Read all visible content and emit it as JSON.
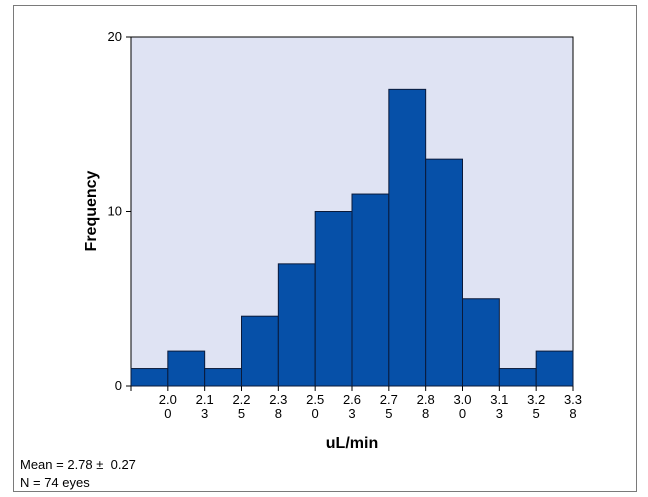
{
  "chart_data": {
    "type": "bar",
    "subtype": "histogram",
    "xlabel": "uL/min",
    "ylabel": "Frequency",
    "ylim": [
      0,
      20
    ],
    "yticks": [
      0,
      10,
      20
    ],
    "xtick_labels": [
      [
        "2.0",
        "0"
      ],
      [
        "2.1",
        "3"
      ],
      [
        "2.2",
        "5"
      ],
      [
        "2.3",
        "8"
      ],
      [
        "2.5",
        "0"
      ],
      [
        "2.6",
        "3"
      ],
      [
        "2.7",
        "5"
      ],
      [
        "2.8",
        "8"
      ],
      [
        "3.0",
        "0"
      ],
      [
        "3.1",
        "3"
      ],
      [
        "3.2",
        "5"
      ],
      [
        "3.3",
        "8"
      ]
    ],
    "bin_edges": [
      1.94,
      2.06,
      2.19,
      2.31,
      2.44,
      2.56,
      2.69,
      2.81,
      2.94,
      3.06,
      3.19,
      3.31,
      3.44
    ],
    "values": [
      1,
      2,
      1,
      4,
      7,
      10,
      11,
      17,
      13,
      5,
      1,
      2
    ],
    "grid": false,
    "colors": {
      "bar_fill": "#0650a8",
      "bar_stroke": "#0a1a3a",
      "plot_bg": "#dfe3f3",
      "axis": "#000000"
    }
  },
  "stats": {
    "mean_line": "Mean = 2.78 ±  0.27",
    "n_line": "N = 74 eyes"
  }
}
